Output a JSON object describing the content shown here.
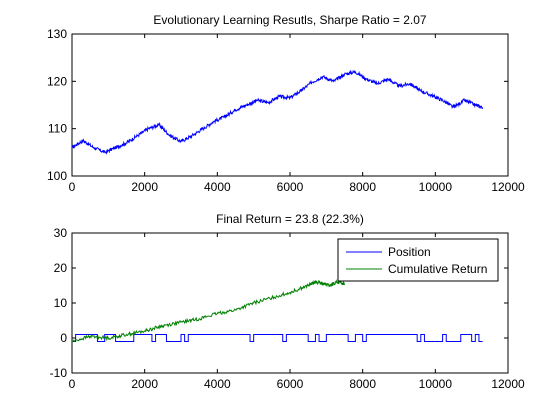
{
  "chart_data": [
    {
      "type": "line",
      "title": "Evolutionary Learning Resutls, Sharpe Ratio = 2.07",
      "xlabel": "",
      "ylabel": "",
      "xlim": [
        0,
        12000
      ],
      "ylim": [
        100,
        130
      ],
      "xticks": [
        0,
        2000,
        4000,
        6000,
        8000,
        10000,
        12000
      ],
      "yticks": [
        100,
        110,
        120,
        130
      ],
      "grid": false,
      "legend": null,
      "series": [
        {
          "color": "#0000ff",
          "x": [
            0,
            300,
            600,
            900,
            1200,
            1500,
            1800,
            2100,
            2400,
            2700,
            3000,
            3300,
            3600,
            3900,
            4200,
            4500,
            4800,
            5100,
            5400,
            5700,
            6000,
            6300,
            6600,
            6900,
            7200,
            7500,
            7800,
            8100,
            8400,
            8700,
            9000,
            9300,
            9600,
            9900,
            10200,
            10500,
            10800,
            11100,
            11300
          ],
          "y": [
            106.0,
            107.5,
            106.0,
            105.0,
            106.0,
            107.0,
            108.5,
            110.0,
            110.8,
            108.5,
            107.3,
            108.5,
            110.0,
            111.5,
            112.5,
            114.0,
            115.0,
            116.0,
            115.5,
            116.8,
            116.5,
            118.0,
            119.8,
            121.0,
            120.0,
            121.5,
            122.0,
            120.5,
            119.5,
            120.5,
            119.0,
            119.5,
            118.0,
            117.0,
            116.0,
            114.5,
            116.0,
            115.0,
            114.5
          ]
        }
      ]
    },
    {
      "type": "line",
      "title": "Final Return = 23.8 (22.3%)",
      "xlabel": "",
      "ylabel": "",
      "xlim": [
        0,
        12000
      ],
      "ylim": [
        -10,
        30
      ],
      "xticks": [
        0,
        2000,
        4000,
        6000,
        8000,
        10000,
        12000
      ],
      "yticks": [
        -10,
        0,
        10,
        20,
        30
      ],
      "grid": false,
      "legend": "top-right",
      "series": [
        {
          "name": "Position",
          "color": "#0000ff",
          "step": true,
          "x": [
            0,
            100,
            700,
            900,
            1200,
            1700,
            2200,
            2300,
            2600,
            3000,
            3100,
            3200,
            4900,
            5000,
            5800,
            5900,
            6500,
            6700,
            6800,
            7000,
            7600,
            7800,
            8000,
            8100,
            9500,
            9600,
            9700,
            10200,
            10300,
            10700,
            11000,
            11100,
            11200,
            11300
          ],
          "y": [
            -1,
            1,
            -1,
            1,
            -1,
            1,
            -1,
            1,
            -1,
            1,
            -1,
            1,
            -1,
            1,
            -1,
            1,
            -1,
            1,
            -1,
            1,
            -1,
            1,
            -1,
            1,
            -1,
            1,
            -1,
            1,
            -1,
            1,
            -1,
            1,
            -1,
            -1
          ]
        },
        {
          "name": "Cumulative Return",
          "color": "#008000",
          "x": [
            0,
            500,
            1000,
            1500,
            2000,
            2500,
            3000,
            3500,
            4000,
            4500,
            5000,
            5500,
            6000,
            6500,
            6700,
            6900,
            7100,
            7300,
            7500
          ],
          "y": [
            -1,
            0.5,
            0,
            1,
            2,
            3.5,
            4.5,
            5.5,
            7,
            8,
            10,
            11.5,
            13,
            15,
            16,
            15.5,
            15,
            16,
            15.5
          ]
        }
      ]
    }
  ]
}
